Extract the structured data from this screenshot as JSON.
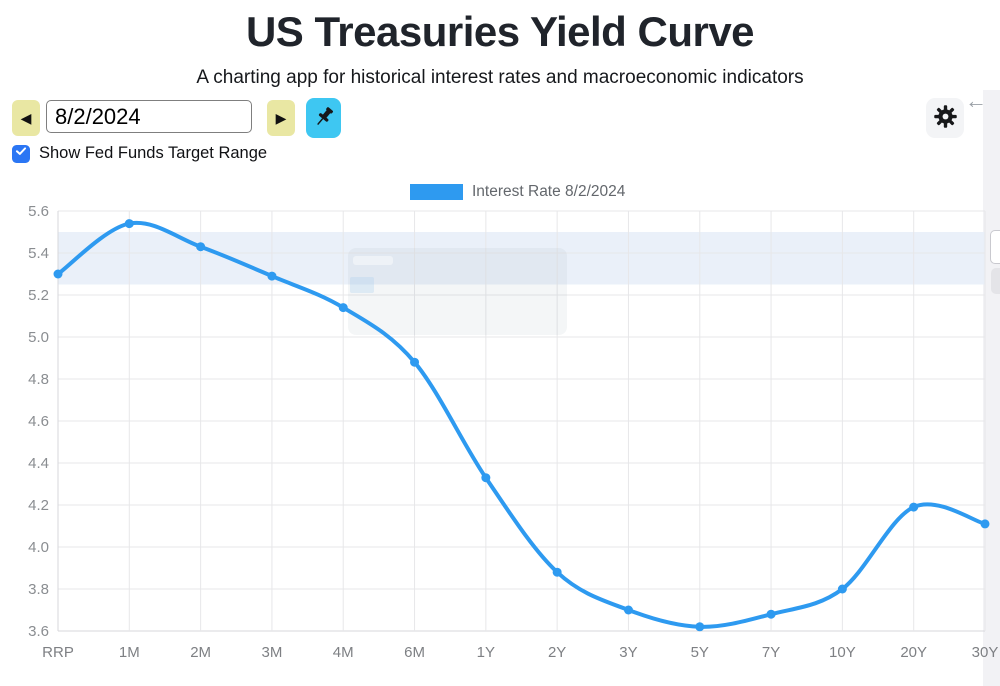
{
  "header": {
    "title": "US Treasuries Yield Curve",
    "subtitle": "A charting app for historical interest rates and macroeconomic indicators"
  },
  "controls": {
    "prev_icon": "◀",
    "next_icon": "▶",
    "date_value": "8/2/2024",
    "pin_icon_name": "pushpin-icon",
    "gear_icon_name": "gear-icon",
    "back_icon": "←",
    "fed_funds_checkbox": {
      "label": "Show Fed Funds Target Range",
      "checked": true
    }
  },
  "chart_data": {
    "type": "line",
    "title": "",
    "xlabel": "",
    "ylabel": "",
    "categories": [
      "RRP",
      "1M",
      "2M",
      "3M",
      "4M",
      "6M",
      "1Y",
      "2Y",
      "3Y",
      "5Y",
      "7Y",
      "10Y",
      "20Y",
      "30Y"
    ],
    "series": [
      {
        "name": "Interest Rate 8/2/2024",
        "values": [
          5.3,
          5.54,
          5.43,
          5.29,
          5.14,
          4.88,
          4.33,
          3.88,
          3.7,
          3.62,
          3.68,
          3.8,
          4.19,
          4.11
        ],
        "color": "#2e9af0"
      }
    ],
    "ylim": [
      3.6,
      5.6
    ],
    "ytick_step": 0.2,
    "grid": true,
    "legend_position": "top",
    "band": {
      "name": "Fed Funds Target Range",
      "from": 5.25,
      "to": 5.5,
      "color": "#e8eef8"
    }
  },
  "colors": {
    "nav_button": "#e9e7a3",
    "pin_button": "#3ec7f2",
    "checkbox": "#2b76f4",
    "line": "#2e9af0",
    "grid_line": "#e7e7e9",
    "axis_line": "#d7d7db",
    "tick_label": "#8a8d91",
    "panel_strip": "#f2f2f5"
  }
}
